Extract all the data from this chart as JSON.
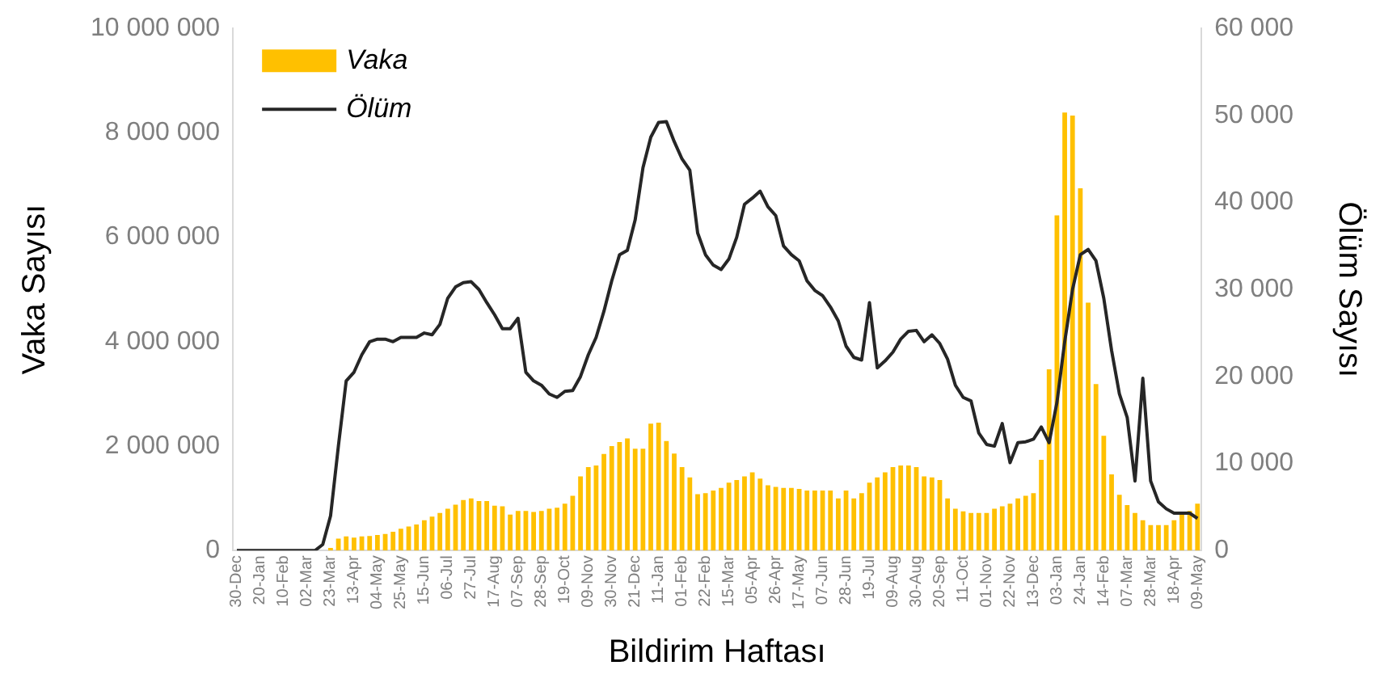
{
  "chart_data": {
    "type": "bar",
    "xlabel": "Bildirim Haftası",
    "ylabel": "Vaka Sayısı",
    "y2label": "Ölüm Sayısı",
    "categories": [
      "30-Dec",
      null,
      null,
      "20-Jan",
      null,
      null,
      "10-Feb",
      null,
      null,
      "02-Mar",
      null,
      null,
      "23-Mar",
      null,
      null,
      "13-Apr",
      null,
      null,
      "04-May",
      null,
      null,
      "25-May",
      null,
      null,
      "15-Jun",
      null,
      null,
      "06-Jul",
      null,
      null,
      "27-Jul",
      null,
      null,
      "17-Aug",
      null,
      null,
      "07-Sep",
      null,
      null,
      "28-Sep",
      null,
      null,
      "19-Oct",
      null,
      null,
      "09-Nov",
      null,
      null,
      "30-Nov",
      null,
      null,
      "21-Dec",
      null,
      null,
      "11-Jan",
      null,
      null,
      "01-Feb",
      null,
      null,
      "22-Feb",
      null,
      null,
      "15-Mar",
      null,
      null,
      "05-Apr",
      null,
      null,
      "26-Apr",
      null,
      null,
      "17-May",
      null,
      null,
      "07-Jun",
      null,
      null,
      "28-Jun",
      null,
      null,
      "19-Jul",
      null,
      null,
      "09-Aug",
      null,
      null,
      "30-Aug",
      null,
      null,
      "20-Sep",
      null,
      null,
      "11-Oct",
      null,
      null,
      "01-Nov",
      null,
      null,
      "22-Nov",
      null,
      null,
      "13-Dec",
      null,
      null,
      "03-Jan",
      null,
      null,
      "24-Jan",
      null,
      null,
      "14-Feb",
      null,
      null,
      "07-Mar",
      null,
      null,
      "28-Mar",
      null,
      null,
      "18-Apr",
      null,
      null,
      "09-May"
    ],
    "series": [
      {
        "name": "Vaka",
        "color": "#ffc000",
        "values": [
          0,
          0,
          0,
          0,
          0,
          0,
          0,
          0,
          0,
          0,
          0,
          0,
          50000,
          230000,
          270000,
          250000,
          270000,
          280000,
          300000,
          320000,
          360000,
          420000,
          460000,
          500000,
          580000,
          650000,
          720000,
          800000,
          880000,
          970000,
          1000000,
          950000,
          950000,
          860000,
          850000,
          690000,
          760000,
          760000,
          740000,
          760000,
          800000,
          820000,
          900000,
          1050000,
          1420000,
          1600000,
          1630000,
          1850000,
          2000000,
          2080000,
          2150000,
          1950000,
          1950000,
          2430000,
          2450000,
          2100000,
          1860000,
          1600000,
          1400000,
          1080000,
          1100000,
          1150000,
          1200000,
          1300000,
          1350000,
          1420000,
          1500000,
          1380000,
          1250000,
          1220000,
          1200000,
          1200000,
          1180000,
          1150000,
          1150000,
          1150000,
          1150000,
          1000000,
          1150000,
          1000000,
          1100000,
          1300000,
          1400000,
          1500000,
          1600000,
          1630000,
          1630000,
          1600000,
          1420000,
          1400000,
          1350000,
          1000000,
          800000,
          750000,
          720000,
          720000,
          720000,
          800000,
          850000,
          900000,
          1000000,
          1050000,
          1100000,
          1740000,
          3470000,
          6420000,
          8390000,
          8330000,
          6940000,
          4750000,
          3190000,
          2200000,
          1460000,
          1070000,
          870000,
          720000,
          580000,
          490000,
          490000,
          490000,
          580000,
          690000,
          760000,
          900000
        ]
      },
      {
        "name": "Ölüm",
        "type": "line",
        "axis": "y2",
        "color": "#262626",
        "values": [
          0,
          0,
          0,
          0,
          0,
          0,
          0,
          0,
          0,
          0,
          0,
          700,
          4000,
          12000,
          19500,
          20500,
          22500,
          24000,
          24300,
          24300,
          24000,
          24500,
          24500,
          24500,
          25000,
          24800,
          26000,
          29000,
          30300,
          30800,
          30900,
          30000,
          28500,
          27100,
          25500,
          25500,
          26700,
          20500,
          19500,
          19000,
          18000,
          17600,
          18300,
          18400,
          20000,
          22500,
          24500,
          27500,
          31000,
          34000,
          34500,
          38000,
          44000,
          47500,
          49200,
          49300,
          47000,
          45000,
          43700,
          36500,
          34000,
          32800,
          32300,
          33500,
          36000,
          39800,
          40500,
          41300,
          39500,
          38500,
          35000,
          34000,
          33300,
          31000,
          29900,
          29300,
          28000,
          26400,
          23500,
          22200,
          21900,
          28500,
          21000,
          21800,
          22800,
          24300,
          25200,
          25300,
          24000,
          24800,
          23800,
          22000,
          19000,
          17600,
          17200,
          13500,
          12200,
          12000,
          14600,
          10100,
          12400,
          12500,
          12800,
          14200,
          12400,
          17000,
          24000,
          30000,
          34000,
          34600,
          33300,
          29000,
          23000,
          18000,
          15300,
          8000,
          19800,
          8000,
          5600,
          4800,
          4300,
          4300,
          4300,
          3700
        ]
      }
    ],
    "ylim": [
      0,
      10000000
    ],
    "yticks": [
      {
        "value": 0,
        "label": "0"
      },
      {
        "value": 2000000,
        "label": "2 000 000"
      },
      {
        "value": 4000000,
        "label": "4 000 000"
      },
      {
        "value": 6000000,
        "label": "6 000 000"
      },
      {
        "value": 8000000,
        "label": "8 000 000"
      },
      {
        "value": 10000000,
        "label": "10 000 000"
      }
    ],
    "y2lim": [
      0,
      60000
    ],
    "y2ticks": [
      {
        "value": 0,
        "label": "0"
      },
      {
        "value": 10000,
        "label": "10 000"
      },
      {
        "value": 20000,
        "label": "20 000"
      },
      {
        "value": 30000,
        "label": "30 000"
      },
      {
        "value": 40000,
        "label": "40 000"
      },
      {
        "value": 50000,
        "label": "50 000"
      },
      {
        "value": 60000,
        "label": "60 000"
      }
    ],
    "grid": false,
    "legend": "top left"
  }
}
